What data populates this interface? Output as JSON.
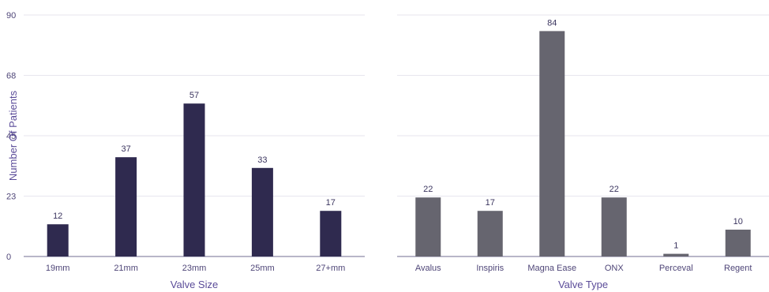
{
  "chart_data": [
    {
      "type": "bar",
      "xlabel": "Valve Size",
      "ylabel": "Number Of Patients",
      "categories": [
        "19mm",
        "21mm",
        "23mm",
        "25mm",
        "27+mm"
      ],
      "values": [
        12,
        37,
        57,
        33,
        17
      ],
      "yticks": [
        "0",
        "23",
        "45",
        "68",
        "90"
      ],
      "ylim": [
        0,
        90
      ],
      "grid": true,
      "bar_color": "#2f2a4f"
    },
    {
      "type": "bar",
      "xlabel": "Valve Type",
      "ylabel": "",
      "categories": [
        "Avalus",
        "Inspiris",
        "Magna Ease",
        "ONX",
        "Perceval",
        "Regent"
      ],
      "values": [
        22,
        17,
        84,
        22,
        1,
        10
      ],
      "yticks": [],
      "ylim": [
        0,
        90
      ],
      "grid": true,
      "bar_color": "#66656f"
    }
  ],
  "colors": {
    "grid": "#e7e6ee",
    "axis": "#8e8aa8",
    "tick_text": "#4f4678",
    "title_text": "#5b4c99"
  }
}
